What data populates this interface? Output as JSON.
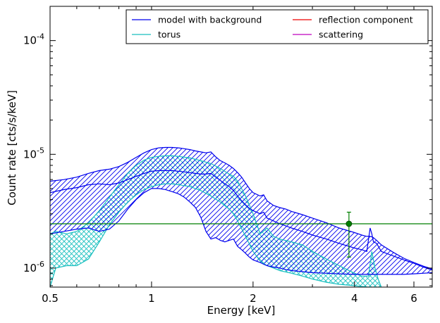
{
  "chart_data": {
    "type": "line",
    "xlabel": "Energy [keV]",
    "ylabel": "Count rate [cts/s/keV]",
    "xscale": "log",
    "yscale": "log",
    "xlim": [
      0.5,
      6.8
    ],
    "ylim": [
      6.8e-07,
      0.0002
    ],
    "x_ticks": [
      {
        "value": 0.5,
        "label": "0.5"
      },
      {
        "value": 1,
        "label": "1"
      },
      {
        "value": 2,
        "label": "2"
      },
      {
        "value": 4,
        "label": "4"
      },
      {
        "value": 6,
        "label": "6"
      }
    ],
    "y_ticks": [
      {
        "value": 1e-06,
        "base": "10",
        "exp": "-6"
      },
      {
        "value": 1e-05,
        "base": "10",
        "exp": "-5"
      },
      {
        "value": 0.0001,
        "base": "10",
        "exp": "-4"
      }
    ],
    "legend": {
      "placement": "top-right",
      "columns": 2,
      "entries": [
        {
          "label": "model with background",
          "color": "#0000ee"
        },
        {
          "label": "torus",
          "color": "#19bfbf"
        },
        {
          "label": "reflection component",
          "color": "#ee0000"
        },
        {
          "label": "scattering",
          "color": "#bf00bf"
        }
      ]
    },
    "series": [
      {
        "name": "model with background",
        "color": "#0000ee",
        "x": [
          0.5,
          0.55,
          0.6,
          0.65,
          0.7,
          0.75,
          0.8,
          0.85,
          0.9,
          0.95,
          1.0,
          1.05,
          1.1,
          1.15,
          1.2,
          1.25,
          1.3,
          1.35,
          1.4,
          1.45,
          1.5,
          1.55,
          1.6,
          1.65,
          1.7,
          1.75,
          1.8,
          1.85,
          1.9,
          1.95,
          2.0,
          2.1,
          2.15,
          2.2,
          2.3,
          2.4,
          2.5,
          2.6,
          2.8,
          3.0,
          3.3,
          3.6,
          4.0,
          4.2,
          4.35,
          4.45,
          4.5,
          4.55,
          4.65,
          4.8,
          5.2,
          5.6,
          6.0,
          6.4,
          6.8
        ],
        "upper": [
          5.8e-06,
          6e-06,
          6.3e-06,
          6.8e-06,
          7.2e-06,
          7.4e-06,
          7.8e-06,
          8.5e-06,
          9.4e-06,
          1.03e-05,
          1.1e-05,
          1.14e-05,
          1.15e-05,
          1.15e-05,
          1.14e-05,
          1.12e-05,
          1.1e-05,
          1.07e-05,
          1.05e-05,
          1.03e-05,
          1.05e-05,
          9.5e-06,
          8.8e-06,
          8.4e-06,
          8e-06,
          7.5e-06,
          6.9e-06,
          6.3e-06,
          5.6e-06,
          5e-06,
          4.6e-06,
          4.3e-06,
          4.4e-06,
          3.9e-06,
          3.55e-06,
          3.4e-06,
          3.3e-06,
          3.15e-06,
          2.95e-06,
          2.75e-06,
          2.5e-06,
          2.25e-06,
          2.05e-06,
          1.95e-06,
          1.9e-06,
          1.9e-06,
          1.88e-06,
          1.85e-06,
          1.75e-06,
          1.6e-06,
          1.38e-06,
          1.22e-06,
          1.12e-06,
          1.04e-06,
          9.8e-07
        ],
        "model": [
          4.6e-06,
          4.9e-06,
          5.1e-06,
          5.4e-06,
          5.5e-06,
          5.4e-06,
          5.6e-06,
          6e-06,
          6.4e-06,
          6.8e-06,
          7.1e-06,
          7.2e-06,
          7.2e-06,
          7.2e-06,
          7.1e-06,
          7e-06,
          6.9e-06,
          6.8e-06,
          6.7e-06,
          6.7e-06,
          6.8e-06,
          6.3e-06,
          5.9e-06,
          5.5e-06,
          5.2e-06,
          4.8e-06,
          4.3e-06,
          3.9e-06,
          3.6e-06,
          3.35e-06,
          3.2e-06,
          3e-06,
          3.1e-06,
          2.75e-06,
          2.6e-06,
          2.45e-06,
          2.35e-06,
          2.25e-06,
          2.1e-06,
          1.95e-06,
          1.8e-06,
          1.65e-06,
          1.5e-06,
          1.45e-06,
          1.4e-06,
          2.25e-06,
          2e-06,
          1.7e-06,
          1.65e-06,
          1.4e-06,
          1.28e-06,
          1.18e-06,
          1.1e-06,
          1.02e-06,
          9.6e-07
        ],
        "lower": [
          2e-06,
          2.1e-06,
          2.2e-06,
          2.25e-06,
          2.1e-06,
          2.2e-06,
          2.6e-06,
          3.3e-06,
          4e-06,
          4.6e-06,
          5e-06,
          5e-06,
          4.9e-06,
          4.7e-06,
          4.5e-06,
          4.2e-06,
          3.8e-06,
          3.4e-06,
          2.8e-06,
          2.1e-06,
          1.8e-06,
          1.85e-06,
          1.75e-06,
          1.7e-06,
          1.75e-06,
          1.8e-06,
          1.55e-06,
          1.45e-06,
          1.35e-06,
          1.25e-06,
          1.18e-06,
          1.12e-06,
          1.08e-06,
          1.05e-06,
          1.02e-06,
          1e-06,
          9.7e-07,
          9.5e-07,
          9.3e-07,
          9.1e-07,
          9e-07,
          8.9e-07,
          8.8e-07,
          8.8e-07,
          8.8e-07,
          8.8e-07,
          8.8e-07,
          8.8e-07,
          8.8e-07,
          8.8e-07,
          8.8e-07,
          8.8e-07,
          8.9e-07,
          9e-07,
          9.1e-07
        ]
      },
      {
        "name": "torus",
        "color": "#19bfbf",
        "x": [
          0.5,
          0.52,
          0.56,
          0.6,
          0.65,
          0.7,
          0.75,
          0.8,
          0.85,
          0.9,
          0.95,
          1.0,
          1.05,
          1.1,
          1.15,
          1.2,
          1.3,
          1.4,
          1.5,
          1.6,
          1.7,
          1.75,
          1.8,
          1.9,
          2.0,
          2.1,
          2.2,
          2.3,
          2.4,
          2.6,
          2.8,
          3.0,
          3.3,
          3.6,
          4.0,
          4.2,
          4.4,
          4.5,
          4.6,
          4.7,
          4.8
        ],
        "upper": [
          2e-06,
          2.1e-06,
          2e-06,
          2.1e-06,
          2.5e-06,
          3.2e-06,
          4.2e-06,
          5.4e-06,
          6.8e-06,
          8e-06,
          8.9e-06,
          9.4e-06,
          9.6e-06,
          9.7e-06,
          9.7e-06,
          9.6e-06,
          9.3e-06,
          8.8e-06,
          8.3e-06,
          7.5e-06,
          6.7e-06,
          6.4e-06,
          5.8e-06,
          4.3e-06,
          3e-06,
          2e-06,
          2.25e-06,
          1.9e-06,
          1.8e-06,
          1.7e-06,
          1.6e-06,
          1.4e-06,
          1.2e-06,
          1.05e-06,
          9e-07,
          8.5e-07,
          8.5e-07,
          1.4e-06,
          1e-06,
          8e-07,
          6.8e-07
        ],
        "lower": [
          6.8e-07,
          1e-06,
          1.05e-06,
          1.05e-06,
          1.2e-06,
          1.7e-06,
          2.4e-06,
          3.1e-06,
          3.8e-06,
          4.4e-06,
          4.9e-06,
          5.2e-06,
          5.4e-06,
          5.5e-06,
          5.5e-06,
          5.4e-06,
          5.2e-06,
          4.8e-06,
          4.3e-06,
          3.8e-06,
          3.3e-06,
          3e-06,
          2.6e-06,
          1.9e-06,
          1.4e-06,
          1.15e-06,
          1.05e-06,
          1e-06,
          9.5e-07,
          9e-07,
          8.5e-07,
          8e-07,
          7.5e-07,
          7.2e-07,
          7e-07,
          6.9e-07,
          6.8e-07,
          6.8e-07,
          6.8e-07,
          6.8e-07,
          6.8e-07
        ]
      }
    ],
    "data_points": [
      {
        "x": 3.85,
        "y": 2.45e-06,
        "yerr_low": 1.25e-06,
        "yerr_high": 3.1e-06,
        "color": "#007f00"
      }
    ],
    "hlines": [
      {
        "y": 2.45e-06,
        "color": "#007f00"
      }
    ]
  }
}
